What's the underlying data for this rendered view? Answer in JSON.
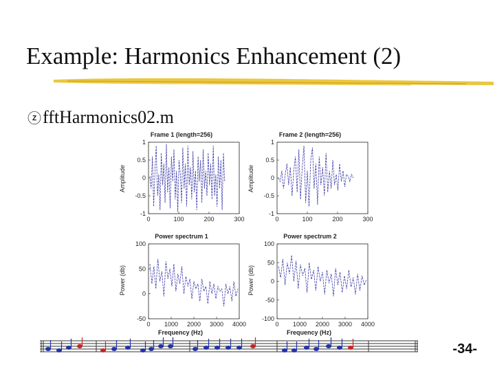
{
  "title": "Example: Harmonics Enhancement (2)",
  "bullet": {
    "icon": "z-bullet-icon",
    "text": "fftHarmonics02.m"
  },
  "page_number": "-34-",
  "colors": {
    "underline": "#e8c12c",
    "signal": "#3a3aa8",
    "note_blue": "#2233aa",
    "note_red": "#cc2222"
  },
  "chart_data": [
    {
      "type": "line",
      "title": "Frame 1 (length=256)",
      "ylabel": "Amplitude",
      "xlabel": "",
      "xlim": [
        0,
        300
      ],
      "ylim": [
        -1,
        1
      ],
      "xticks": [
        "0",
        "100",
        "200",
        "300"
      ],
      "yticks": [
        "1",
        "0.5",
        "0",
        "-0.5",
        "-1"
      ],
      "series": [
        {
          "values": [
            0.05,
            -0.3,
            0.6,
            -0.8,
            0.2,
            0.9,
            -0.5,
            0.1,
            -0.9,
            0.7,
            -0.2,
            0.4,
            -0.7,
            0.95,
            -0.4,
            0.3,
            -0.85,
            0.6,
            -0.1,
            0.8,
            -0.6,
            0.2,
            -0.95,
            0.5,
            0.1,
            -0.7,
            0.85,
            -0.3,
            0.4,
            -0.8,
            0.9,
            -0.2,
            0.3,
            -0.6,
            0.75,
            -0.4,
            0.2,
            -0.9,
            0.6,
            -0.1,
            0.5,
            -0.7,
            0.8,
            -0.3,
            0.2,
            -0.5,
            0.7,
            -0.2,
            0.4,
            -0.6,
            0.9,
            -0.5,
            0.1,
            -0.8,
            0.6,
            -0.3,
            0.5,
            -0.9,
            0.7,
            -0.1
          ]
        }
      ]
    },
    {
      "type": "line",
      "title": "Frame 2 (length=256)",
      "ylabel": "Amplitude",
      "xlabel": "",
      "xlim": [
        0,
        300
      ],
      "ylim": [
        -1,
        1
      ],
      "xticks": [
        "0",
        "100",
        "200",
        "300"
      ],
      "yticks": [
        "1",
        "0.5",
        "0",
        "-0.5",
        "-1"
      ],
      "series": [
        {
          "values": [
            0.0,
            -0.1,
            0.2,
            -0.3,
            0.1,
            0.4,
            -0.2,
            0.3,
            -0.5,
            0.2,
            0.6,
            -0.4,
            0.8,
            -0.6,
            0.3,
            0.9,
            -0.7,
            0.2,
            -0.8,
            0.5,
            0.85,
            -0.3,
            0.4,
            -0.75,
            0.6,
            -0.2,
            0.3,
            -0.5,
            0.7,
            -0.4,
            0.2,
            -0.3,
            0.5,
            -0.2,
            0.1,
            -0.35,
            0.4,
            -0.1,
            0.2,
            -0.25,
            0.1,
            0.05,
            -0.1,
            0.1,
            0.0
          ]
        }
      ]
    },
    {
      "type": "line",
      "title": "Power spectrum 1",
      "ylabel": "Power (db)",
      "xlabel": "Frequency (Hz)",
      "xlim": [
        0,
        4000
      ],
      "ylim": [
        -50,
        100
      ],
      "xticks": [
        "0",
        "1000",
        "2000",
        "3000",
        "4000"
      ],
      "yticks": [
        "100",
        "50",
        "0",
        "-50"
      ],
      "series": [
        {
          "values": [
            60,
            20,
            55,
            10,
            70,
            25,
            45,
            -5,
            65,
            30,
            50,
            15,
            60,
            5,
            40,
            20,
            55,
            0,
            35,
            15,
            30,
            -10,
            25,
            10,
            20,
            -15,
            30,
            5,
            15,
            -20,
            25,
            0,
            20,
            -10,
            15,
            5,
            10,
            -25,
            20,
            0,
            15,
            -15,
            25,
            -5,
            10
          ]
        }
      ]
    },
    {
      "type": "line",
      "title": "Power spectrum 2",
      "ylabel": "Power (db)",
      "xlabel": "Frequency (Hz)",
      "xlim": [
        0,
        4000
      ],
      "ylim": [
        -100,
        100
      ],
      "xticks": [
        "0",
        "1000",
        "2000",
        "3000",
        "4000"
      ],
      "yticks": [
        "100",
        "50",
        "0",
        "-50",
        "-100"
      ],
      "series": [
        {
          "values": [
            40,
            10,
            60,
            -10,
            50,
            20,
            70,
            0,
            55,
            -20,
            45,
            15,
            35,
            -30,
            50,
            5,
            30,
            -25,
            40,
            0,
            25,
            -35,
            30,
            -5,
            20,
            -40,
            35,
            -10,
            25,
            -30,
            15,
            -20,
            30,
            -15,
            10,
            -35,
            20,
            -25,
            15,
            -10,
            5
          ]
        }
      ]
    }
  ]
}
